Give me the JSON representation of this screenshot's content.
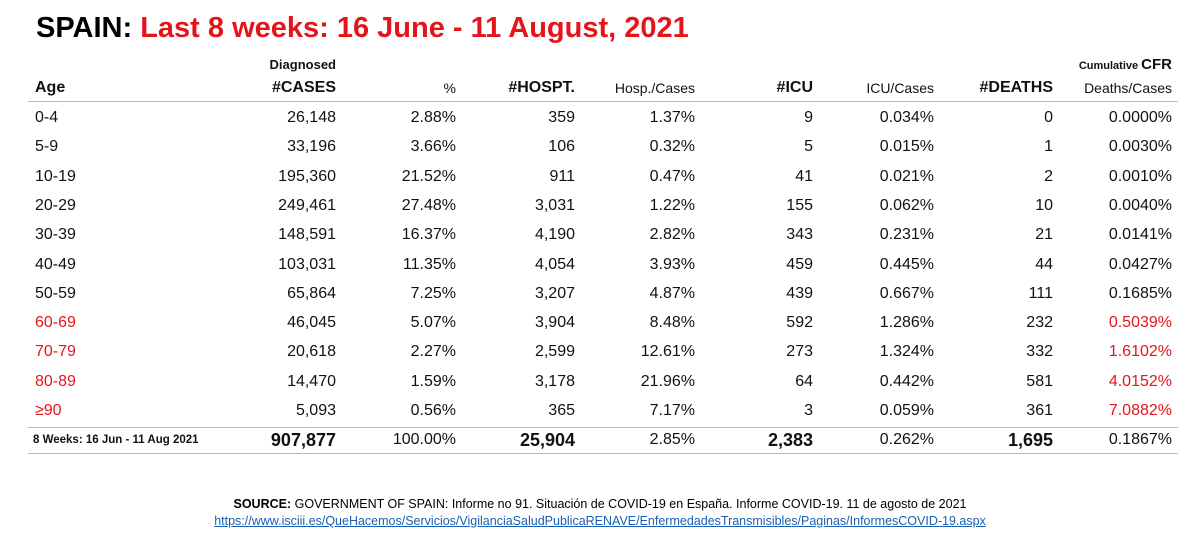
{
  "title": {
    "label": "SPAIN:",
    "text": "Last 8 weeks: 16 June - 11 August, 2021"
  },
  "super_headers": {
    "diagnosed": "Diagnosed",
    "cumulative": "Cumulative",
    "cfr": "CFR"
  },
  "headers": [
    "Age",
    "#CASES",
    "%",
    "#HOSPT.",
    "Hosp./Cases",
    "#ICU",
    "ICU/Cases",
    "#DEATHS",
    "Deaths/Cases"
  ],
  "rows": [
    [
      "0-4",
      "26,148",
      "2.88%",
      "359",
      "1.37%",
      "9",
      "0.034%",
      "0",
      "0.0000%"
    ],
    [
      "5-9",
      "33,196",
      "3.66%",
      "106",
      "0.32%",
      "5",
      "0.015%",
      "1",
      "0.0030%"
    ],
    [
      "10-19",
      "195,360",
      "21.52%",
      "911",
      "0.47%",
      "41",
      "0.021%",
      "2",
      "0.0010%"
    ],
    [
      "20-29",
      "249,461",
      "27.48%",
      "3,031",
      "1.22%",
      "155",
      "0.062%",
      "10",
      "0.0040%"
    ],
    [
      "30-39",
      "148,591",
      "16.37%",
      "4,190",
      "2.82%",
      "343",
      "0.231%",
      "21",
      "0.0141%"
    ],
    [
      "40-49",
      "103,031",
      "11.35%",
      "4,054",
      "3.93%",
      "459",
      "0.445%",
      "44",
      "0.0427%"
    ],
    [
      "50-59",
      "65,864",
      "7.25%",
      "3,207",
      "4.87%",
      "439",
      "0.667%",
      "111",
      "0.1685%"
    ],
    [
      "60-69",
      "46,045",
      "5.07%",
      "3,904",
      "8.48%",
      "592",
      "1.286%",
      "232",
      "0.5039%"
    ],
    [
      "70-79",
      "20,618",
      "2.27%",
      "2,599",
      "12.61%",
      "273",
      "1.324%",
      "332",
      "1.6102%"
    ],
    [
      "80-89",
      "14,470",
      "1.59%",
      "3,178",
      "21.96%",
      "64",
      "0.442%",
      "581",
      "4.0152%"
    ],
    [
      "≥90",
      "5,093",
      "0.56%",
      "365",
      "7.17%",
      "3",
      "0.059%",
      "361",
      "7.0882%"
    ]
  ],
  "total": [
    "8 Weeks: 16 Jun - 11 Aug 2021",
    "907,877",
    "100.00%",
    "25,904",
    "2.85%",
    "2,383",
    "0.262%",
    "1,695",
    "0.1867%"
  ],
  "source": {
    "label": "SOURCE:",
    "text": "GOVERNMENT OF SPAIN: Informe  no 91. Situación de COVID-19 en España. Informe  COVID-19. 11 de agosto de 2021",
    "url": "https://www.isciii.es/QueHacemos/Servicios/VigilanciaSaludPublicaRENAVE/EnfermedadesTransmisibles/Paginas/InformesCOVID-19.aspx"
  }
}
